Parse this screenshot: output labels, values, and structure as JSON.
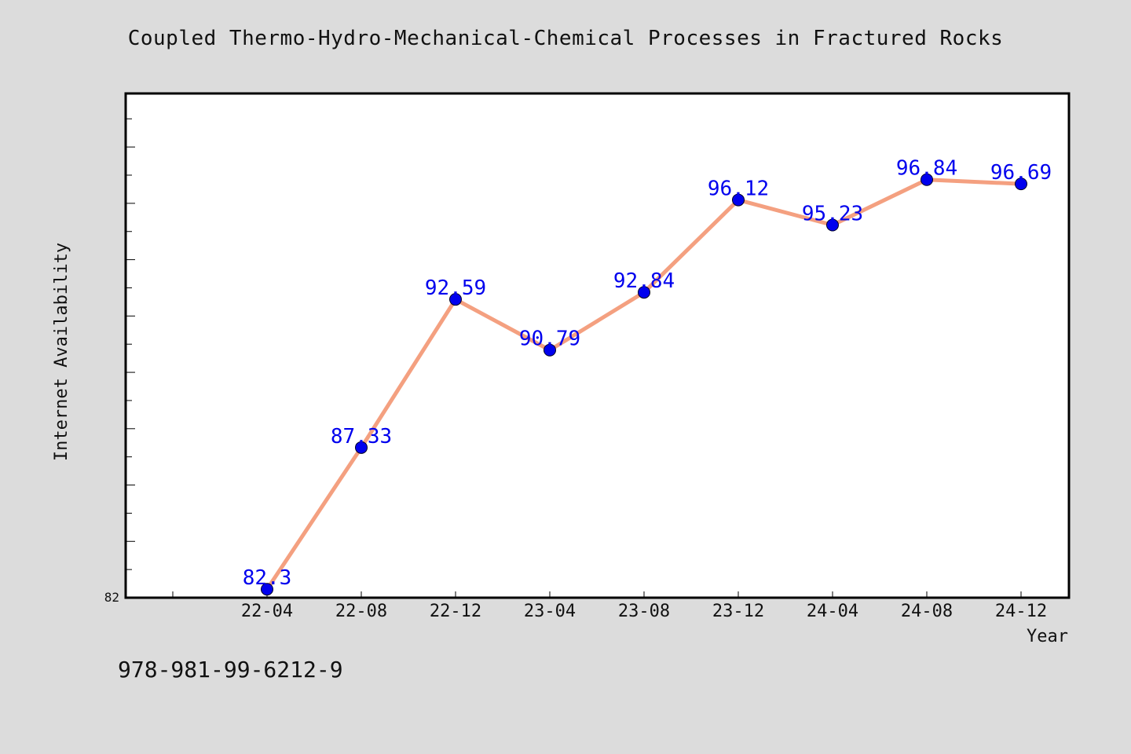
{
  "title": "Coupled Thermo-Hydro-Mechanical-Chemical Processes in Fractured Rocks",
  "footer_text": "978-981-99-6212-9",
  "colors": {
    "background": "#dcdcdc",
    "plot_bg": "#ffffff",
    "line": "#f4a080",
    "marker": "#0000ee",
    "label": "#0000ee"
  },
  "chart_data": {
    "type": "line",
    "title": "Coupled Thermo-Hydro-Mechanical-Chemical Processes in Fractured Rocks",
    "xlabel": "Year",
    "ylabel": "Internet Availability",
    "categories": [
      "22-04",
      "22-08",
      "22-12",
      "23-04",
      "23-08",
      "23-12",
      "24-04",
      "24-08",
      "24-12"
    ],
    "series": [
      {
        "values": [
          82.3,
          87.33,
          92.59,
          90.79,
          92.84,
          96.12,
          95.23,
          96.84,
          96.69
        ]
      }
    ],
    "data_labels": [
      "82.3",
      "87.33",
      "92.59",
      "90.79",
      "92.84",
      "96.12",
      "95.23",
      "96.84",
      "96.69"
    ],
    "ylim": [
      82,
      99.9
    ],
    "y_tick_labels": [
      "82"
    ],
    "grid": false,
    "legend": "none"
  }
}
